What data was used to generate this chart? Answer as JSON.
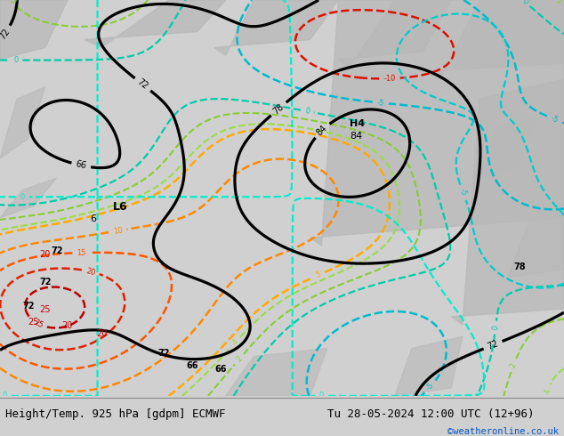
{
  "title_left": "Height/Temp. 925 hPa [gdpm] ECMWF",
  "title_right": "Tu 28-05-2024 12:00 UTC (12+96)",
  "copyright": "©weatheronline.co.uk",
  "title_fontsize": 9,
  "land_color": "#a0d878",
  "gray_color": "#b8b8b8",
  "bg_color": "#d0d0d0"
}
